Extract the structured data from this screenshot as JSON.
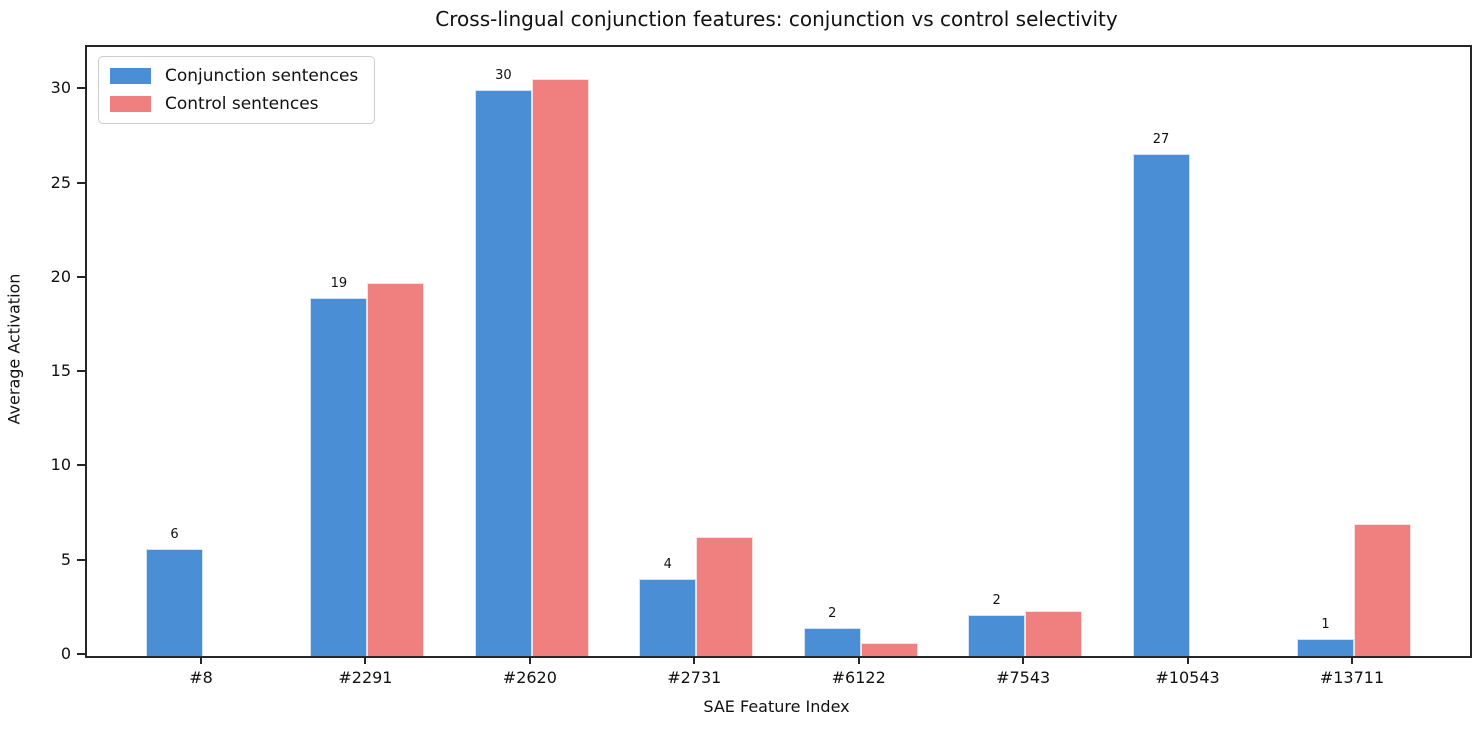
{
  "chart_data": {
    "type": "bar",
    "title": "Cross-lingual conjunction features: conjunction vs control selectivity",
    "xlabel": "SAE Feature Index",
    "ylabel": "Average Activation",
    "categories": [
      "#8",
      "#2291",
      "#2620",
      "#2731",
      "#6122",
      "#7543",
      "#10543",
      "#13711"
    ],
    "series": [
      {
        "name": "Conjunction sentences",
        "color": "#4a8ed5",
        "values": [
          5.7,
          19.0,
          30.0,
          4.1,
          1.5,
          2.2,
          26.6,
          0.9
        ],
        "bar_labels": [
          "6",
          "19",
          "30",
          "4",
          "2",
          "2",
          "27",
          "1"
        ]
      },
      {
        "name": "Control sentences",
        "color": "#f08080",
        "values": [
          0,
          19.8,
          30.6,
          6.3,
          0.7,
          2.4,
          0,
          7.0
        ],
        "bar_labels": []
      }
    ],
    "ylim": [
      0,
      32.3
    ],
    "yticks": [
      0,
      5,
      10,
      15,
      20,
      25,
      30
    ],
    "grid": false,
    "legend_position": "upper left",
    "spine_color": "#262626"
  }
}
